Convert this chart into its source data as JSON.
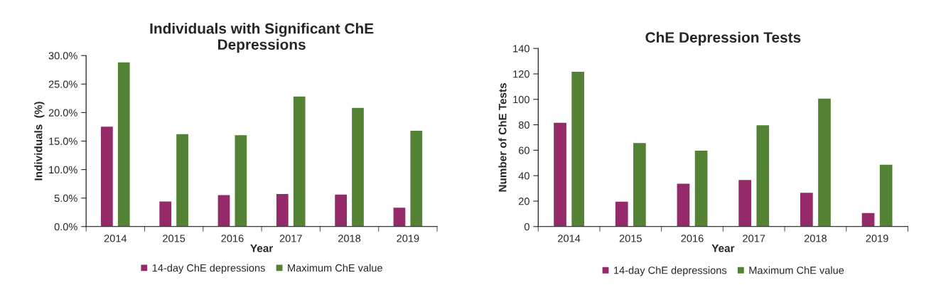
{
  "chart_data": [
    {
      "type": "bar",
      "title": "Individuals with Significant ChE\nDepressions",
      "xlabel": "Year",
      "ylabel": "Individuals  (%)",
      "categories": [
        "2014",
        "2015",
        "2016",
        "2017",
        "2018",
        "2019"
      ],
      "series": [
        {
          "name": "14-day ChE depressions",
          "color": "#952a6b",
          "values": [
            17.6,
            4.5,
            5.6,
            5.8,
            5.7,
            3.4
          ]
        },
        {
          "name": "Maximum ChE value",
          "color": "#548235",
          "values": [
            28.9,
            16.3,
            16.1,
            22.9,
            20.9,
            16.9
          ]
        }
      ],
      "ylim": [
        0,
        30
      ],
      "yticks": [
        {
          "value": 0,
          "label": "0.0%"
        },
        {
          "value": 5,
          "label": "5.0%"
        },
        {
          "value": 10,
          "label": "10.0%"
        },
        {
          "value": 15,
          "label": "15.0%"
        },
        {
          "value": 20,
          "label": "20.0%"
        },
        {
          "value": 25,
          "label": "25.0%"
        },
        {
          "value": 30,
          "label": "30.0%"
        }
      ],
      "legend": "bottom",
      "grid": false
    },
    {
      "type": "bar",
      "title": "ChE Depression Tests",
      "xlabel": "Year",
      "ylabel": "Number of ChE Tests",
      "categories": [
        "2014",
        "2015",
        "2016",
        "2017",
        "2018",
        "2019"
      ],
      "series": [
        {
          "name": "14-day ChE depressions",
          "color": "#952a6b",
          "values": [
            82,
            20,
            34,
            37,
            27,
            11
          ]
        },
        {
          "name": "Maximum ChE value",
          "color": "#548235",
          "values": [
            122,
            66,
            60,
            80,
            101,
            49
          ]
        }
      ],
      "ylim": [
        0,
        140
      ],
      "yticks": [
        0,
        20,
        40,
        60,
        80,
        100,
        120,
        140
      ],
      "legend": "bottom",
      "grid": false
    }
  ]
}
